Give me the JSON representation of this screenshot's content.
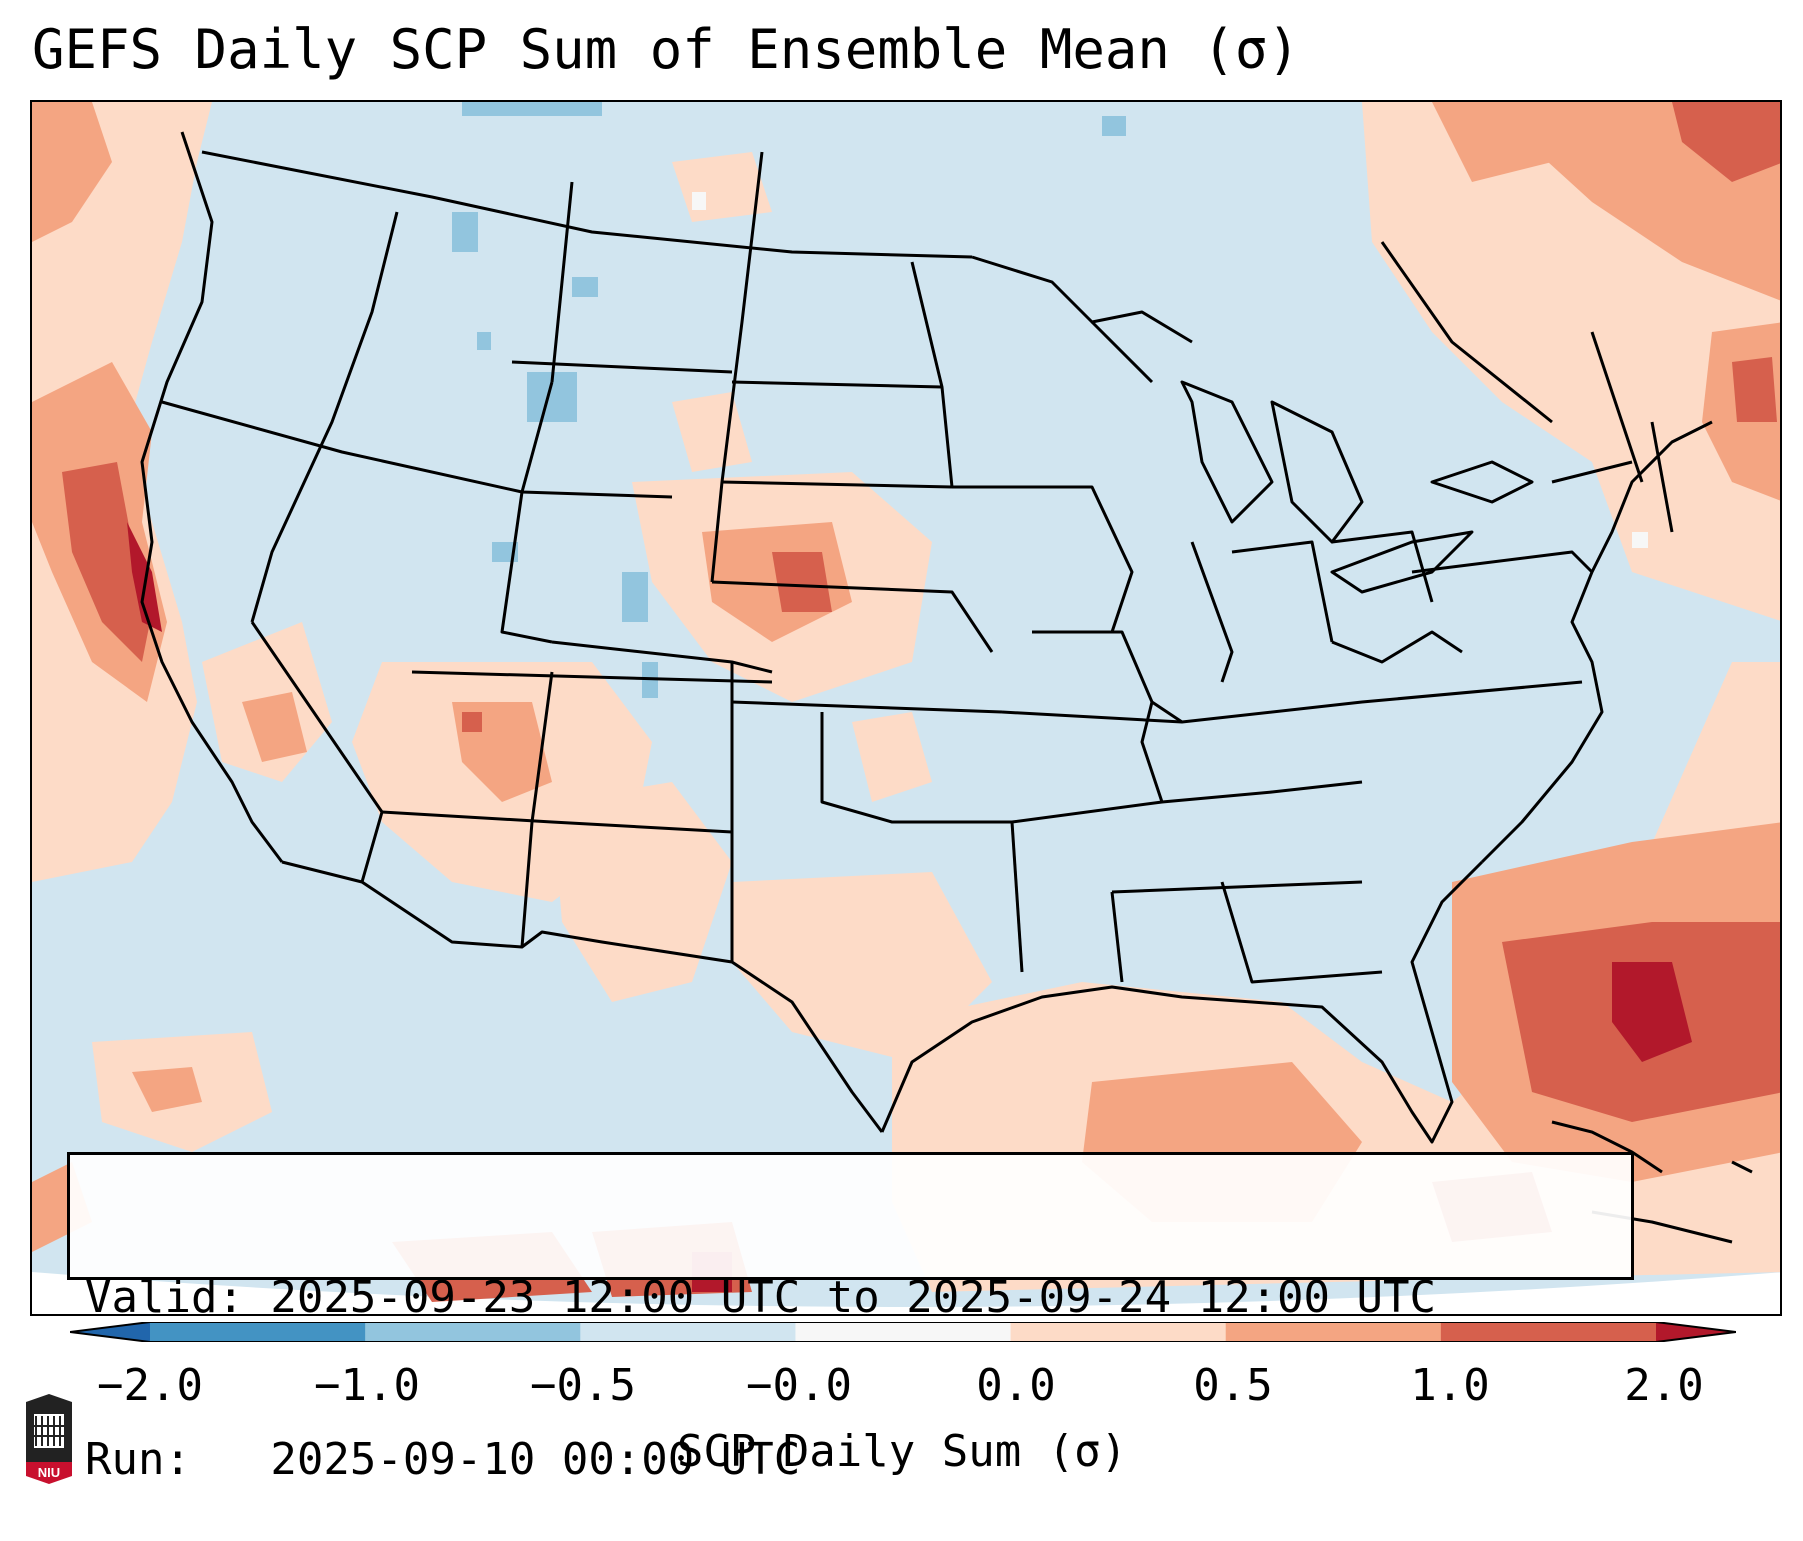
{
  "title": "GEFS Daily SCP Sum of Ensemble Mean (σ)",
  "info": {
    "valid": "Valid: 2025-09-23 12:00 UTC to 2025-09-24 12:00 UTC",
    "run": "Run:   2025-09-10 00:00 UTC"
  },
  "colorbar": {
    "label": "SCP Daily Sum (σ)",
    "ticks": [
      "−2.0",
      "−1.0",
      "−0.5",
      "−0.0",
      "0.0",
      "0.5",
      "1.0",
      "2.0"
    ],
    "colors": [
      "#2166ac",
      "#4393c3",
      "#92c5de",
      "#d1e5f0",
      "#f7f7f7",
      "#fddbc7",
      "#f4a582",
      "#d6604d",
      "#b2182b"
    ],
    "extend": "both"
  },
  "map": {
    "projection": "Lambert Conformal",
    "region": "CONUS",
    "background_value_color": "#d1e5f0",
    "field_colors": {
      "near_neutral_positive": "#fddbc7",
      "moderate_positive": "#f4a582",
      "strong_positive": "#d6604d",
      "extreme_positive": "#b2182b",
      "slight_negative": "#d1e5f0",
      "moderate_negative": "#92c5de",
      "neutral": "#f7f7f7"
    },
    "logo_text": "NIU"
  }
}
